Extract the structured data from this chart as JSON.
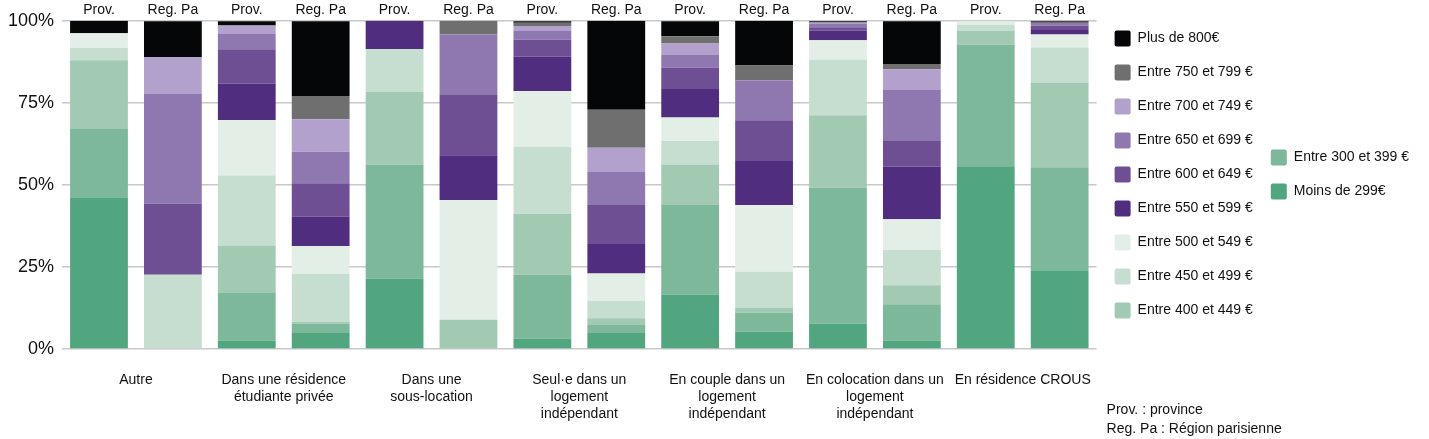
{
  "chart_data": {
    "type": "bar",
    "stacked": true,
    "grid": "y",
    "legend": "right",
    "categories": [
      "Prov.",
      "Reg. Pa",
      "Prov.",
      "Reg. Pa",
      "Prov.",
      "Reg. Pa",
      "Prov.",
      "Reg. Pa",
      "Prov.",
      "Reg. Pa",
      "Prov.",
      "Reg. Pa",
      "Prov.",
      "Reg. Pa"
    ],
    "ylim": [
      0,
      100
    ],
    "yticks": [
      {
        "value": 0,
        "label": "0%"
      },
      {
        "value": 25,
        "label": "25%"
      },
      {
        "value": 50,
        "label": "50%"
      },
      {
        "value": 75,
        "label": "75%"
      },
      {
        "value": 100,
        "label": "100%"
      }
    ],
    "series": [
      {
        "name": "Moins de 299€",
        "color": "#52a67f",
        "values": [
          46,
          0,
          2.6,
          4.9,
          21.5,
          0,
          3.2,
          4.9,
          16.6,
          5.3,
          7.7,
          2.6,
          55.7,
          24
        ]
      },
      {
        "name": "Entre 300 et 399 €",
        "color": "#7db89a",
        "values": [
          21,
          0,
          14.5,
          2.9,
          34.7,
          0,
          19.4,
          2.4,
          27.3,
          5.8,
          41.4,
          11,
          37,
          31.4
        ]
      },
      {
        "name": "Entre 400 et 449 €",
        "color": "#a2c9b2",
        "values": [
          21,
          0,
          14.4,
          0.5,
          22.1,
          8.9,
          18.6,
          2.1,
          12.3,
          1.4,
          22.1,
          5.8,
          4.3,
          25.8
        ]
      },
      {
        "name": "Entre 450 et 499 €",
        "color": "#c6ded0",
        "values": [
          3.7,
          22.6,
          21.4,
          14.6,
          13.1,
          0,
          20.4,
          5.3,
          7.2,
          11,
          16.9,
          10.8,
          1.8,
          10.7
        ]
      },
      {
        "name": "Entre 500 et 549 €",
        "color": "#e2eee6",
        "values": [
          4.5,
          0,
          16.9,
          8.5,
          0,
          36.5,
          17,
          8.3,
          7.1,
          20.4,
          6,
          9.3,
          1.1,
          3.9
        ]
      },
      {
        "name": "Entre 550 et 599 €",
        "color": "#512d7f",
        "values": [
          0,
          0,
          11,
          8.9,
          8.6,
          13.6,
          10.5,
          9,
          8.7,
          13.4,
          2.9,
          16.1,
          0,
          1.4
        ]
      },
      {
        "name": "Entre 600 et 649 €",
        "color": "#6f4f94",
        "values": [
          0,
          21.7,
          10.5,
          10.2,
          0,
          18.4,
          5.1,
          11.9,
          6.6,
          12.4,
          1,
          7.8,
          0,
          1.3
        ]
      },
      {
        "name": "Entre 650 et 699 €",
        "color": "#8f78b0",
        "values": [
          0,
          33.4,
          4.7,
          9.6,
          0,
          18.4,
          2.7,
          10,
          3.9,
          12.1,
          1,
          15.5,
          0,
          0.8
        ]
      },
      {
        "name": "Entre 700 et 749 €",
        "color": "#b2a1cc",
        "values": [
          0,
          11.3,
          2.6,
          9.9,
          0,
          0,
          1.5,
          7.4,
          3.4,
          0,
          0.5,
          6.3,
          0,
          0
        ]
      },
      {
        "name": "Entre 750 et 799 €",
        "color": "#6f6f6f",
        "values": [
          0,
          0,
          0,
          7.1,
          0,
          4.2,
          1,
          11.6,
          2.2,
          4.6,
          0,
          1.6,
          0,
          0.4
        ]
      },
      {
        "name": "Plus de 800€",
        "color": "#050608",
        "values": [
          3.8,
          10.9,
          1.3,
          22.8,
          0,
          0,
          0.5,
          27.1,
          4.6,
          13.6,
          0.4,
          13.1,
          0,
          0.3
        ]
      }
    ],
    "annotations": [
      "Autre",
      "Dans une résidence étudiante privée",
      "Dans une sous-location",
      "Seul·e dans un logement indépendant",
      "En couple dans un logement indépendant",
      "En colocation dans un logement indépendant",
      "En résidence CROUS",
      "Prov. : province",
      "Reg. Pa : Région parisienne"
    ]
  }
}
